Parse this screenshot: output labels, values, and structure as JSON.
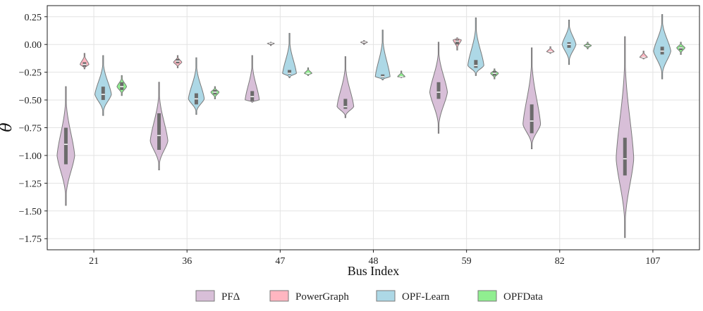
{
  "chart_data": {
    "type": "violin",
    "xlabel": "Bus Index",
    "ylabel": "θ",
    "ylim": [
      -1.85,
      0.35
    ],
    "yticks": [
      0.25,
      0.0,
      -0.25,
      -0.5,
      -0.75,
      -1.0,
      -1.25,
      -1.5,
      -1.75
    ],
    "ytick_labels": [
      "0.25",
      "0.00",
      "−0.25",
      "−0.50",
      "−0.75",
      "−1.00",
      "−1.25",
      "−1.50",
      "−1.75"
    ],
    "categories": [
      "21",
      "36",
      "47",
      "48",
      "59",
      "82",
      "107"
    ],
    "grid": true,
    "legend_position": "bottom",
    "series": [
      {
        "name": "PFΔ",
        "color": "#d8bfd8",
        "stats": [
          {
            "min": -1.45,
            "q1": -1.08,
            "median": -0.9,
            "q3": -0.75,
            "max": -0.38,
            "mode": -1.0
          },
          {
            "min": -1.13,
            "q1": -0.95,
            "median": -0.82,
            "q3": -0.62,
            "max": -0.34,
            "mode": -0.87
          },
          {
            "min": -0.52,
            "q1": -0.51,
            "median": -0.47,
            "q3": -0.42,
            "max": -0.1,
            "mode": -0.5
          },
          {
            "min": -0.66,
            "q1": -0.58,
            "median": -0.56,
            "q3": -0.49,
            "max": -0.11,
            "mode": -0.56
          },
          {
            "min": -0.8,
            "q1": -0.49,
            "median": -0.43,
            "q3": -0.34,
            "max": 0.02,
            "mode": -0.43
          },
          {
            "min": -0.94,
            "q1": -0.8,
            "median": -0.69,
            "q3": -0.54,
            "max": -0.03,
            "mode": -0.72
          },
          {
            "min": -1.74,
            "q1": -1.18,
            "median": -1.03,
            "q3": -0.84,
            "max": 0.07,
            "mode": -1.03
          }
        ]
      },
      {
        "name": "PowerGraph",
        "color": "#ffb6c1",
        "stats": [
          {
            "min": -0.22,
            "q1": -0.2,
            "median": -0.18,
            "q3": -0.16,
            "max": -0.08,
            "mode": -0.18
          },
          {
            "min": -0.21,
            "q1": -0.17,
            "median": -0.15,
            "q3": -0.13,
            "max": -0.1,
            "mode": -0.16
          },
          {
            "min": -0.01,
            "q1": 0.0,
            "median": 0.01,
            "q3": 0.012,
            "max": 0.02,
            "mode": 0.01
          },
          {
            "min": 0.0,
            "q1": 0.01,
            "median": 0.02,
            "q3": 0.025,
            "max": 0.035,
            "mode": 0.02
          },
          {
            "min": -0.05,
            "q1": 0.0,
            "median": 0.03,
            "q3": 0.045,
            "max": 0.06,
            "mode": 0.04
          },
          {
            "min": -0.08,
            "q1": -0.07,
            "median": -0.065,
            "q3": -0.06,
            "max": -0.02,
            "mode": -0.065
          },
          {
            "min": -0.13,
            "q1": -0.12,
            "median": -0.115,
            "q3": -0.11,
            "max": -0.06,
            "mode": -0.115
          }
        ]
      },
      {
        "name": "OPF-Learn",
        "color": "#add8e6",
        "stats": [
          {
            "min": -0.64,
            "q1": -0.5,
            "median": -0.45,
            "q3": -0.38,
            "max": -0.1,
            "mode": -0.45
          },
          {
            "min": -0.63,
            "q1": -0.54,
            "median": -0.49,
            "q3": -0.44,
            "max": -0.12,
            "mode": -0.49
          },
          {
            "min": -0.3,
            "q1": -0.27,
            "median": -0.26,
            "q3": -0.23,
            "max": 0.1,
            "mode": -0.26
          },
          {
            "min": -0.32,
            "q1": -0.3,
            "median": -0.29,
            "q3": -0.27,
            "max": 0.13,
            "mode": -0.29
          },
          {
            "min": -0.28,
            "q1": -0.21,
            "median": -0.19,
            "q3": -0.14,
            "max": 0.24,
            "mode": -0.19
          },
          {
            "min": -0.18,
            "q1": -0.03,
            "median": 0.0,
            "q3": 0.02,
            "max": 0.22,
            "mode": 0.0
          },
          {
            "min": -0.31,
            "q1": -0.09,
            "median": -0.06,
            "q3": -0.02,
            "max": 0.27,
            "mode": -0.06
          }
        ]
      },
      {
        "name": "OPFData",
        "color": "#90ee90",
        "stats": [
          {
            "min": -0.46,
            "q1": -0.41,
            "median": -0.38,
            "q3": -0.34,
            "max": -0.28,
            "mode": -0.38
          },
          {
            "min": -0.49,
            "q1": -0.45,
            "median": -0.43,
            "q3": -0.41,
            "max": -0.38,
            "mode": -0.43
          },
          {
            "min": -0.28,
            "q1": -0.265,
            "median": -0.26,
            "q3": -0.255,
            "max": -0.21,
            "mode": -0.26
          },
          {
            "min": -0.3,
            "q1": -0.295,
            "median": -0.29,
            "q3": -0.285,
            "max": -0.24,
            "mode": -0.29
          },
          {
            "min": -0.31,
            "q1": -0.28,
            "median": -0.26,
            "q3": -0.24,
            "max": -0.22,
            "mode": -0.26
          },
          {
            "min": -0.04,
            "q1": -0.02,
            "median": -0.01,
            "q3": 0.0,
            "max": 0.02,
            "mode": -0.01
          },
          {
            "min": -0.09,
            "q1": -0.05,
            "median": -0.03,
            "q3": -0.02,
            "max": 0.02,
            "mode": -0.03
          }
        ]
      }
    ]
  }
}
